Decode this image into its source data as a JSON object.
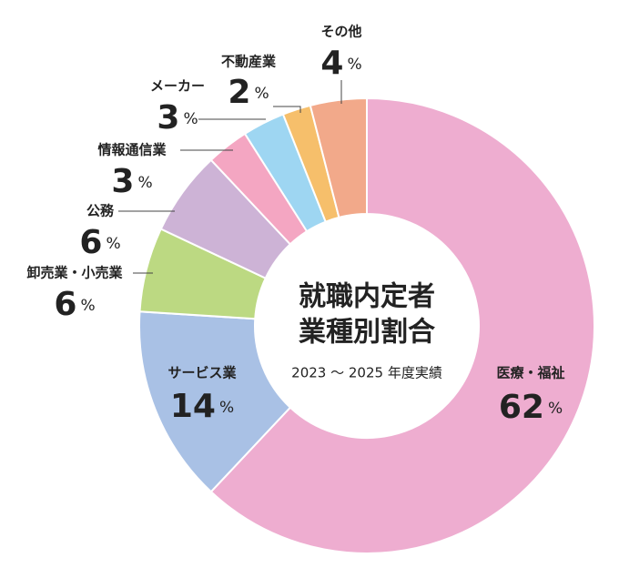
{
  "chart_data": {
    "type": "pie",
    "donut": true,
    "title": [
      "就職内定者",
      "業種別割合"
    ],
    "subtitle": "2023 ～ 2025 年度実績",
    "unit": "%",
    "categories": [
      "医療・福祉",
      "サービス業",
      "卸売業・小売業",
      "公務",
      "情報通信業",
      "メーカー",
      "不動産業",
      "その他"
    ],
    "values": [
      62,
      14,
      6,
      6,
      3,
      3,
      2,
      4
    ],
    "colors": [
      "#eeadd0",
      "#a9c1e5",
      "#bcd982",
      "#cdb3d6",
      "#f4a6c2",
      "#9ed6f2",
      "#f6bf6b",
      "#f2a98a"
    ]
  }
}
